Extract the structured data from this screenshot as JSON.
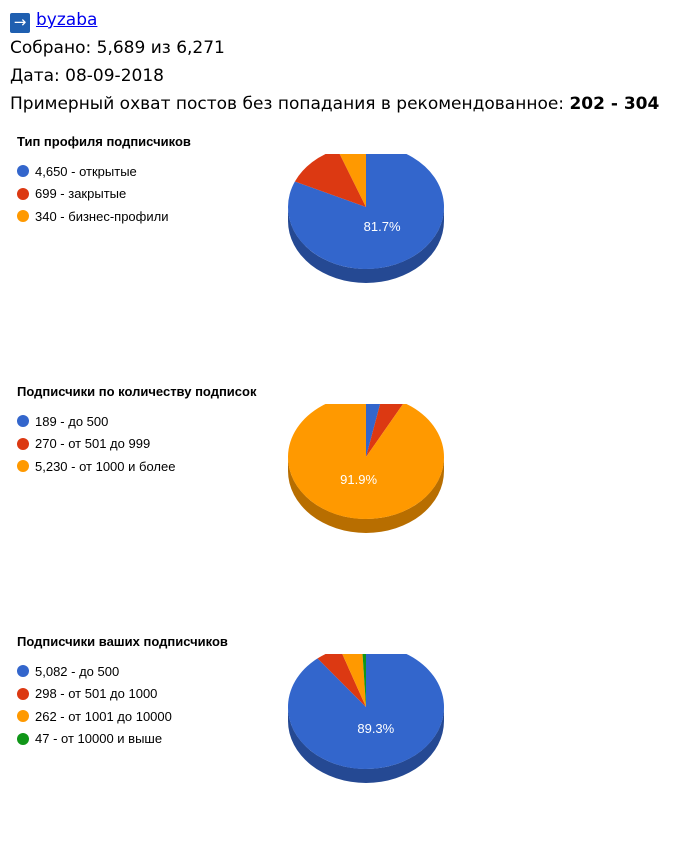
{
  "header": {
    "arrow_icon": "→",
    "account_link": "byzaba",
    "collected_label": "Собрано:",
    "collected_value": "5,689 из 6,271",
    "date_label": "Дата:",
    "date_value": "08-09-2018",
    "reach_label": "Примерный охват постов без попадания в рекомендованное:",
    "reach_value": "202 - 304"
  },
  "chart_data": [
    {
      "type": "pie",
      "title": "Тип профиля подписчиков",
      "categories": [
        "открытые",
        "закрытые",
        "бизнес-профили"
      ],
      "values": [
        4650,
        699,
        340
      ],
      "legend": [
        "4,650 - открытые",
        "699 - закрытые",
        "340 - бизнес-профили"
      ],
      "colors": [
        "#3366cc",
        "#dc3912",
        "#ff9900"
      ],
      "data_labels": [
        "81.7%",
        "",
        ""
      ],
      "legend_placement": "left"
    },
    {
      "type": "pie",
      "title": "Подписчики по количеству подписок",
      "categories": [
        "до 500",
        "от 501 до 999",
        "от 1000 и более"
      ],
      "values": [
        189,
        270,
        5230
      ],
      "legend": [
        "189 - до 500",
        "270 - от 501 до 999",
        "5,230 - от 1000 и более"
      ],
      "colors": [
        "#3366cc",
        "#dc3912",
        "#ff9900"
      ],
      "data_labels": [
        "",
        "",
        "91.9%"
      ],
      "legend_placement": "left"
    },
    {
      "type": "pie",
      "title": "Подписчики ваших подписчиков",
      "categories": [
        "до 500",
        "от 501 до 1000",
        "от 1001 до 10000",
        "от 10000 и выше"
      ],
      "values": [
        5082,
        298,
        262,
        47
      ],
      "legend": [
        "5,082 - до 500",
        "298 - от 501 до 1000",
        "262 - от 1001 до 10000",
        "47 - от 10000 и выше"
      ],
      "colors": [
        "#3366cc",
        "#dc3912",
        "#ff9900",
        "#109618"
      ],
      "data_labels": [
        "89.3%",
        "",
        "",
        ""
      ],
      "legend_placement": "left"
    }
  ]
}
